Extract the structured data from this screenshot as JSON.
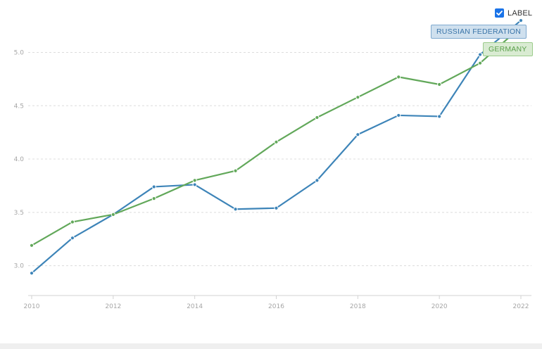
{
  "controls": {
    "label_toggle": {
      "text": "LABEL",
      "checked": true
    }
  },
  "chart_data": {
    "type": "line",
    "title": "",
    "xlabel": "",
    "ylabel": "",
    "x": [
      2010,
      2011,
      2012,
      2013,
      2014,
      2015,
      2016,
      2017,
      2018,
      2019,
      2020,
      2021,
      2022
    ],
    "xticks": [
      "2010",
      "2012",
      "2014",
      "2016",
      "2018",
      "2020",
      "2022"
    ],
    "yticks": [
      "3.0",
      "3.5",
      "4.0",
      "4.5",
      "5.0"
    ],
    "xlim": [
      2010,
      2022
    ],
    "ylim": [
      2.72,
      5.36
    ],
    "grid": true,
    "series": [
      {
        "name": "RUSSIAN FEDERATION",
        "color": "#3d84b8",
        "values": [
          2.93,
          3.26,
          3.48,
          3.74,
          3.76,
          3.53,
          3.54,
          3.8,
          4.23,
          4.41,
          4.4,
          4.98,
          5.3
        ]
      },
      {
        "name": "GERMANY",
        "color": "#62a85a",
        "values": [
          3.19,
          3.41,
          3.48,
          3.63,
          3.8,
          3.89,
          4.16,
          4.39,
          4.58,
          4.77,
          4.7,
          4.9,
          5.24
        ]
      }
    ]
  }
}
